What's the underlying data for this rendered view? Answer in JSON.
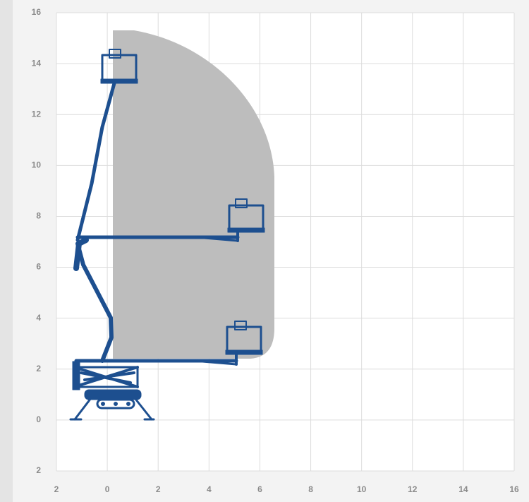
{
  "axes": {
    "xlim": [
      -2,
      16
    ],
    "ylim": [
      -2,
      16
    ],
    "xticks": [
      {
        "value": -2,
        "label": "2"
      },
      0,
      2,
      4,
      6,
      8,
      10,
      12,
      14,
      16
    ],
    "yticks": [
      {
        "value": -2,
        "label": "2"
      },
      0,
      2,
      4,
      6,
      8,
      10,
      12,
      14,
      16
    ]
  }
}
